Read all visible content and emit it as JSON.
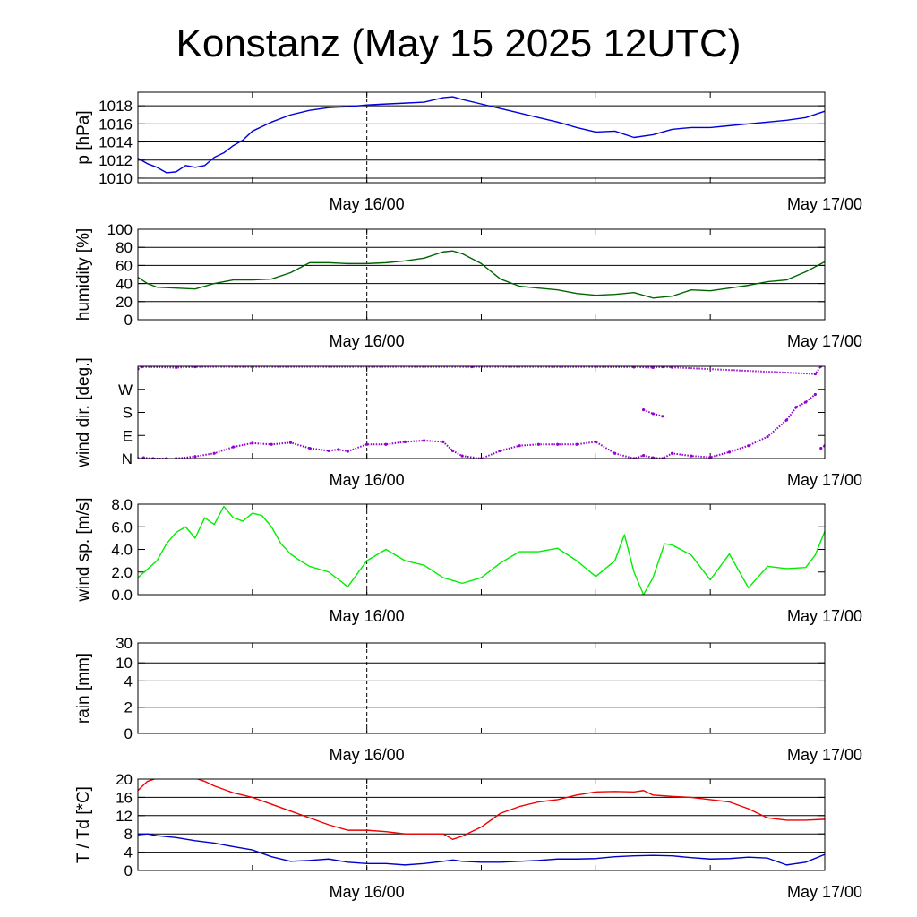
{
  "title": "Konstanz (May 15 2025 12UTC)",
  "colors": {
    "pressure": "#0000dd",
    "humidity": "#006400",
    "wind_dir": "#9400d3",
    "wind_speed": "#00ee00",
    "rain": "#0000ff",
    "temperature": "#ee0000",
    "dewpoint": "#0000cc"
  },
  "chart_data": [
    {
      "type": "line",
      "ylabel": "p [hPa]",
      "ylim": [
        1009.5,
        1019.5
      ],
      "yticks": [
        1010,
        1012,
        1014,
        1016,
        1018
      ],
      "ytick_labels": [
        "1010",
        "1012",
        "1014",
        "1016",
        "1018"
      ],
      "xlim": [
        0,
        36
      ],
      "xtick_labels": [
        {
          "x": 12,
          "label": "May 16/00"
        },
        {
          "x": 36,
          "label": "May 17/00"
        }
      ],
      "grid": true,
      "series": [
        {
          "color_key": "pressure",
          "x": [
            0,
            0.5,
            1,
            1.5,
            2,
            2.5,
            3,
            3.5,
            4,
            4.5,
            5,
            5.5,
            6,
            7,
            8,
            9,
            10,
            11,
            12,
            13,
            14,
            15,
            16,
            16.5,
            17,
            18,
            19,
            20,
            21,
            22,
            23,
            24,
            25,
            26,
            27,
            28,
            29,
            30,
            31,
            32,
            33,
            34,
            35,
            36
          ],
          "y": [
            1012.2,
            1011.6,
            1011.2,
            1010.6,
            1010.7,
            1011.4,
            1011.2,
            1011.4,
            1012.3,
            1012.8,
            1013.6,
            1014.2,
            1015.2,
            1016.2,
            1017.0,
            1017.5,
            1017.8,
            1017.9,
            1018.1,
            1018.2,
            1018.3,
            1018.4,
            1018.9,
            1019.0,
            1018.7,
            1018.2,
            1017.7,
            1017.2,
            1016.7,
            1016.2,
            1015.6,
            1015.1,
            1015.2,
            1014.5,
            1014.8,
            1015.4,
            1015.6,
            1015.6,
            1015.8,
            1016.0,
            1016.2,
            1016.4,
            1016.7,
            1017.4
          ]
        }
      ]
    },
    {
      "type": "line",
      "ylabel": "humidity [%]",
      "ylim": [
        0,
        100
      ],
      "yticks": [
        0,
        20,
        40,
        60,
        80,
        100
      ],
      "ytick_labels": [
        "0",
        "20",
        "40",
        "60",
        "80",
        "100"
      ],
      "xlim": [
        0,
        36
      ],
      "xtick_labels": [
        {
          "x": 12,
          "label": "May 16/00"
        },
        {
          "x": 36,
          "label": "May 17/00"
        }
      ],
      "grid": true,
      "series": [
        {
          "color_key": "humidity",
          "x": [
            0,
            0.5,
            1,
            2,
            3,
            3.5,
            4,
            4.5,
            5,
            6,
            7,
            8,
            9,
            10,
            11,
            12,
            13,
            14,
            15,
            16,
            16.5,
            17,
            18,
            19,
            20,
            21,
            22,
            23,
            24,
            25,
            26,
            27,
            28,
            29,
            30,
            31,
            32,
            33,
            34,
            35,
            36
          ],
          "y": [
            47,
            40,
            36,
            35,
            34,
            37,
            40,
            42,
            44,
            44,
            45,
            52,
            63,
            63,
            62,
            62,
            63,
            65,
            68,
            75,
            76,
            73,
            62,
            45,
            37,
            35,
            33,
            29,
            27,
            28,
            30,
            24,
            26,
            33,
            32,
            35,
            38,
            42,
            44,
            53,
            64
          ]
        }
      ]
    },
    {
      "type": "scatter",
      "ylabel": "wind dir. [deg.]",
      "ylim": [
        0,
        360
      ],
      "yticks": [
        0,
        90,
        180,
        270
      ],
      "ytick_labels": [
        "N",
        "E",
        "S",
        "W"
      ],
      "xlim": [
        0,
        36
      ],
      "xtick_labels": [
        {
          "x": 12,
          "label": "May 16/00"
        },
        {
          "x": 36,
          "label": "May 17/00"
        }
      ],
      "grid": false,
      "series": [
        {
          "color_key": "wind_dir",
          "x": [
            2,
            3,
            4,
            5,
            6,
            7,
            8,
            9,
            10,
            10.5,
            11,
            12,
            13,
            14,
            15,
            16,
            16.5,
            17,
            18,
            19,
            20,
            21,
            22,
            23,
            24,
            25,
            26,
            26.5,
            27,
            27.5,
            28,
            29,
            30,
            31,
            32,
            33,
            34,
            34.5,
            35,
            35.5
          ],
          "y": [
            0,
            8,
            20,
            45,
            60,
            55,
            62,
            40,
            30,
            35,
            28,
            55,
            55,
            65,
            70,
            65,
            30,
            10,
            0,
            30,
            50,
            55,
            55,
            55,
            65,
            20,
            0,
            12,
            3,
            0,
            20,
            10,
            5,
            25,
            50,
            85,
            150,
            200,
            220,
            250
          ]
        },
        {
          "color_key": "wind_dir",
          "x": [
            0,
            0.3,
            0.8,
            1.5
          ],
          "y": [
            1,
            3,
            0,
            0
          ]
        },
        {
          "color_key": "wind_dir",
          "x": [
            0,
            0.2,
            2,
            3,
            17.5,
            26,
            27,
            27.5,
            28,
            35.5,
            35.8
          ],
          "y": [
            350,
            358,
            355,
            358,
            358,
            357,
            355,
            358,
            356,
            330,
            360
          ]
        },
        {
          "color_key": "wind_dir",
          "x": [
            26.5,
            27.0,
            27.5
          ],
          "y": [
            190,
            175,
            165
          ]
        },
        {
          "color_key": "wind_dir",
          "x": [
            35.8,
            36
          ],
          "y": [
            40,
            50
          ]
        }
      ]
    },
    {
      "type": "line",
      "ylabel": "wind sp. [m/s]",
      "ylim": [
        0,
        8
      ],
      "yticks": [
        0,
        2,
        4,
        6,
        8
      ],
      "ytick_labels": [
        "0.0",
        "2.0",
        "4.0",
        "6.0",
        "8.0"
      ],
      "xlim": [
        0,
        36
      ],
      "xtick_labels": [
        {
          "x": 12,
          "label": "May 16/00"
        },
        {
          "x": 36,
          "label": "May 17/00"
        }
      ],
      "grid": false,
      "series": [
        {
          "color_key": "wind_speed",
          "x": [
            0,
            1,
            1.5,
            2,
            2.5,
            3,
            3.5,
            4,
            4.5,
            5,
            5.5,
            6,
            6.5,
            7,
            7.5,
            8,
            8.5,
            9,
            10,
            11,
            12,
            13,
            14,
            15,
            16,
            17,
            18,
            19,
            20,
            21,
            22,
            23,
            24,
            25,
            25.5,
            26,
            26.5,
            27,
            27.3,
            27.6,
            28,
            29,
            30,
            31,
            32,
            33,
            34,
            35,
            35.5,
            36
          ],
          "y": [
            1.5,
            3,
            4.5,
            5.5,
            6.0,
            5.0,
            6.8,
            6.2,
            7.8,
            6.8,
            6.5,
            7.2,
            7.0,
            6.0,
            4.5,
            3.6,
            3.0,
            2.5,
            2.0,
            0.7,
            3.0,
            4.0,
            3.0,
            2.6,
            1.5,
            1.0,
            1.5,
            2.8,
            3.8,
            3.8,
            4.1,
            3.0,
            1.6,
            3.0,
            5.3,
            2.0,
            0.0,
            1.5,
            3.0,
            4.5,
            4.4,
            3.5,
            1.3,
            3.6,
            0.6,
            2.5,
            2.3,
            2.4,
            3.5,
            5.6
          ]
        }
      ]
    },
    {
      "type": "line",
      "ylabel": "rain [mm]",
      "ylim": [
        0,
        30
      ],
      "yticks": [
        0,
        2,
        4,
        10,
        30
      ],
      "ytick_labels": [
        "0",
        "2",
        "4",
        "10",
        "30"
      ],
      "xlim": [
        0,
        36
      ],
      "xtick_labels": [
        {
          "x": 12,
          "label": "May 16/00"
        },
        {
          "x": 36,
          "label": "May 17/00"
        }
      ],
      "grid": true,
      "series": [
        {
          "color_key": "rain",
          "x": [
            0,
            36
          ],
          "y": [
            0,
            0
          ]
        }
      ]
    },
    {
      "type": "line",
      "ylabel": "T / Td [*C]",
      "ylim": [
        0,
        20
      ],
      "yticks": [
        0,
        4,
        8,
        12,
        16,
        20
      ],
      "ytick_labels": [
        "0",
        "4",
        "8",
        "12",
        "16",
        "20"
      ],
      "xlim": [
        0,
        36
      ],
      "xtick_labels": [
        {
          "x": 12,
          "label": "May 16/00"
        },
        {
          "x": 36,
          "label": "May 17/00"
        }
      ],
      "grid": true,
      "series": [
        {
          "color_key": "temperature",
          "x": [
            0,
            0.5,
            1,
            2,
            3,
            3.5,
            4,
            5,
            6,
            7,
            8,
            9,
            10,
            11,
            12,
            13,
            14,
            15,
            16,
            16.5,
            17,
            18,
            19,
            20,
            21,
            22,
            23,
            24,
            25,
            26,
            26.5,
            27,
            28,
            29,
            30,
            31,
            32,
            33,
            34,
            35,
            36
          ],
          "y": [
            17.5,
            19.5,
            20.2,
            20.6,
            20.2,
            19.5,
            18.5,
            17,
            16,
            14.5,
            13,
            11.5,
            10,
            8.8,
            8.8,
            8.5,
            8,
            8,
            8,
            6.8,
            7.5,
            9.5,
            12.5,
            14,
            15,
            15.5,
            16.5,
            17.2,
            17.3,
            17.2,
            17.5,
            16.5,
            16.2,
            16,
            15.5,
            15,
            13.5,
            11.5,
            11,
            11,
            11.2
          ]
        },
        {
          "color_key": "dewpoint",
          "x": [
            0,
            0.5,
            1,
            2,
            3,
            4,
            5,
            6,
            7,
            8,
            9,
            10,
            11,
            12,
            13,
            14,
            15,
            16,
            16.5,
            17,
            18,
            19,
            20,
            21,
            22,
            23,
            24,
            25,
            26,
            27,
            28,
            29,
            30,
            31,
            32,
            33,
            34,
            35,
            36
          ],
          "y": [
            7.8,
            8,
            7.6,
            7.2,
            6.5,
            6,
            5.2,
            4.5,
            3,
            2,
            2.2,
            2.5,
            1.8,
            1.5,
            1.5,
            1.2,
            1.5,
            2,
            2.3,
            2,
            1.8,
            1.8,
            2,
            2.2,
            2.5,
            2.5,
            2.6,
            3,
            3.2,
            3.3,
            3.2,
            2.8,
            2.5,
            2.6,
            2.9,
            2.7,
            1.2,
            1.8,
            3.5
          ]
        }
      ]
    }
  ]
}
